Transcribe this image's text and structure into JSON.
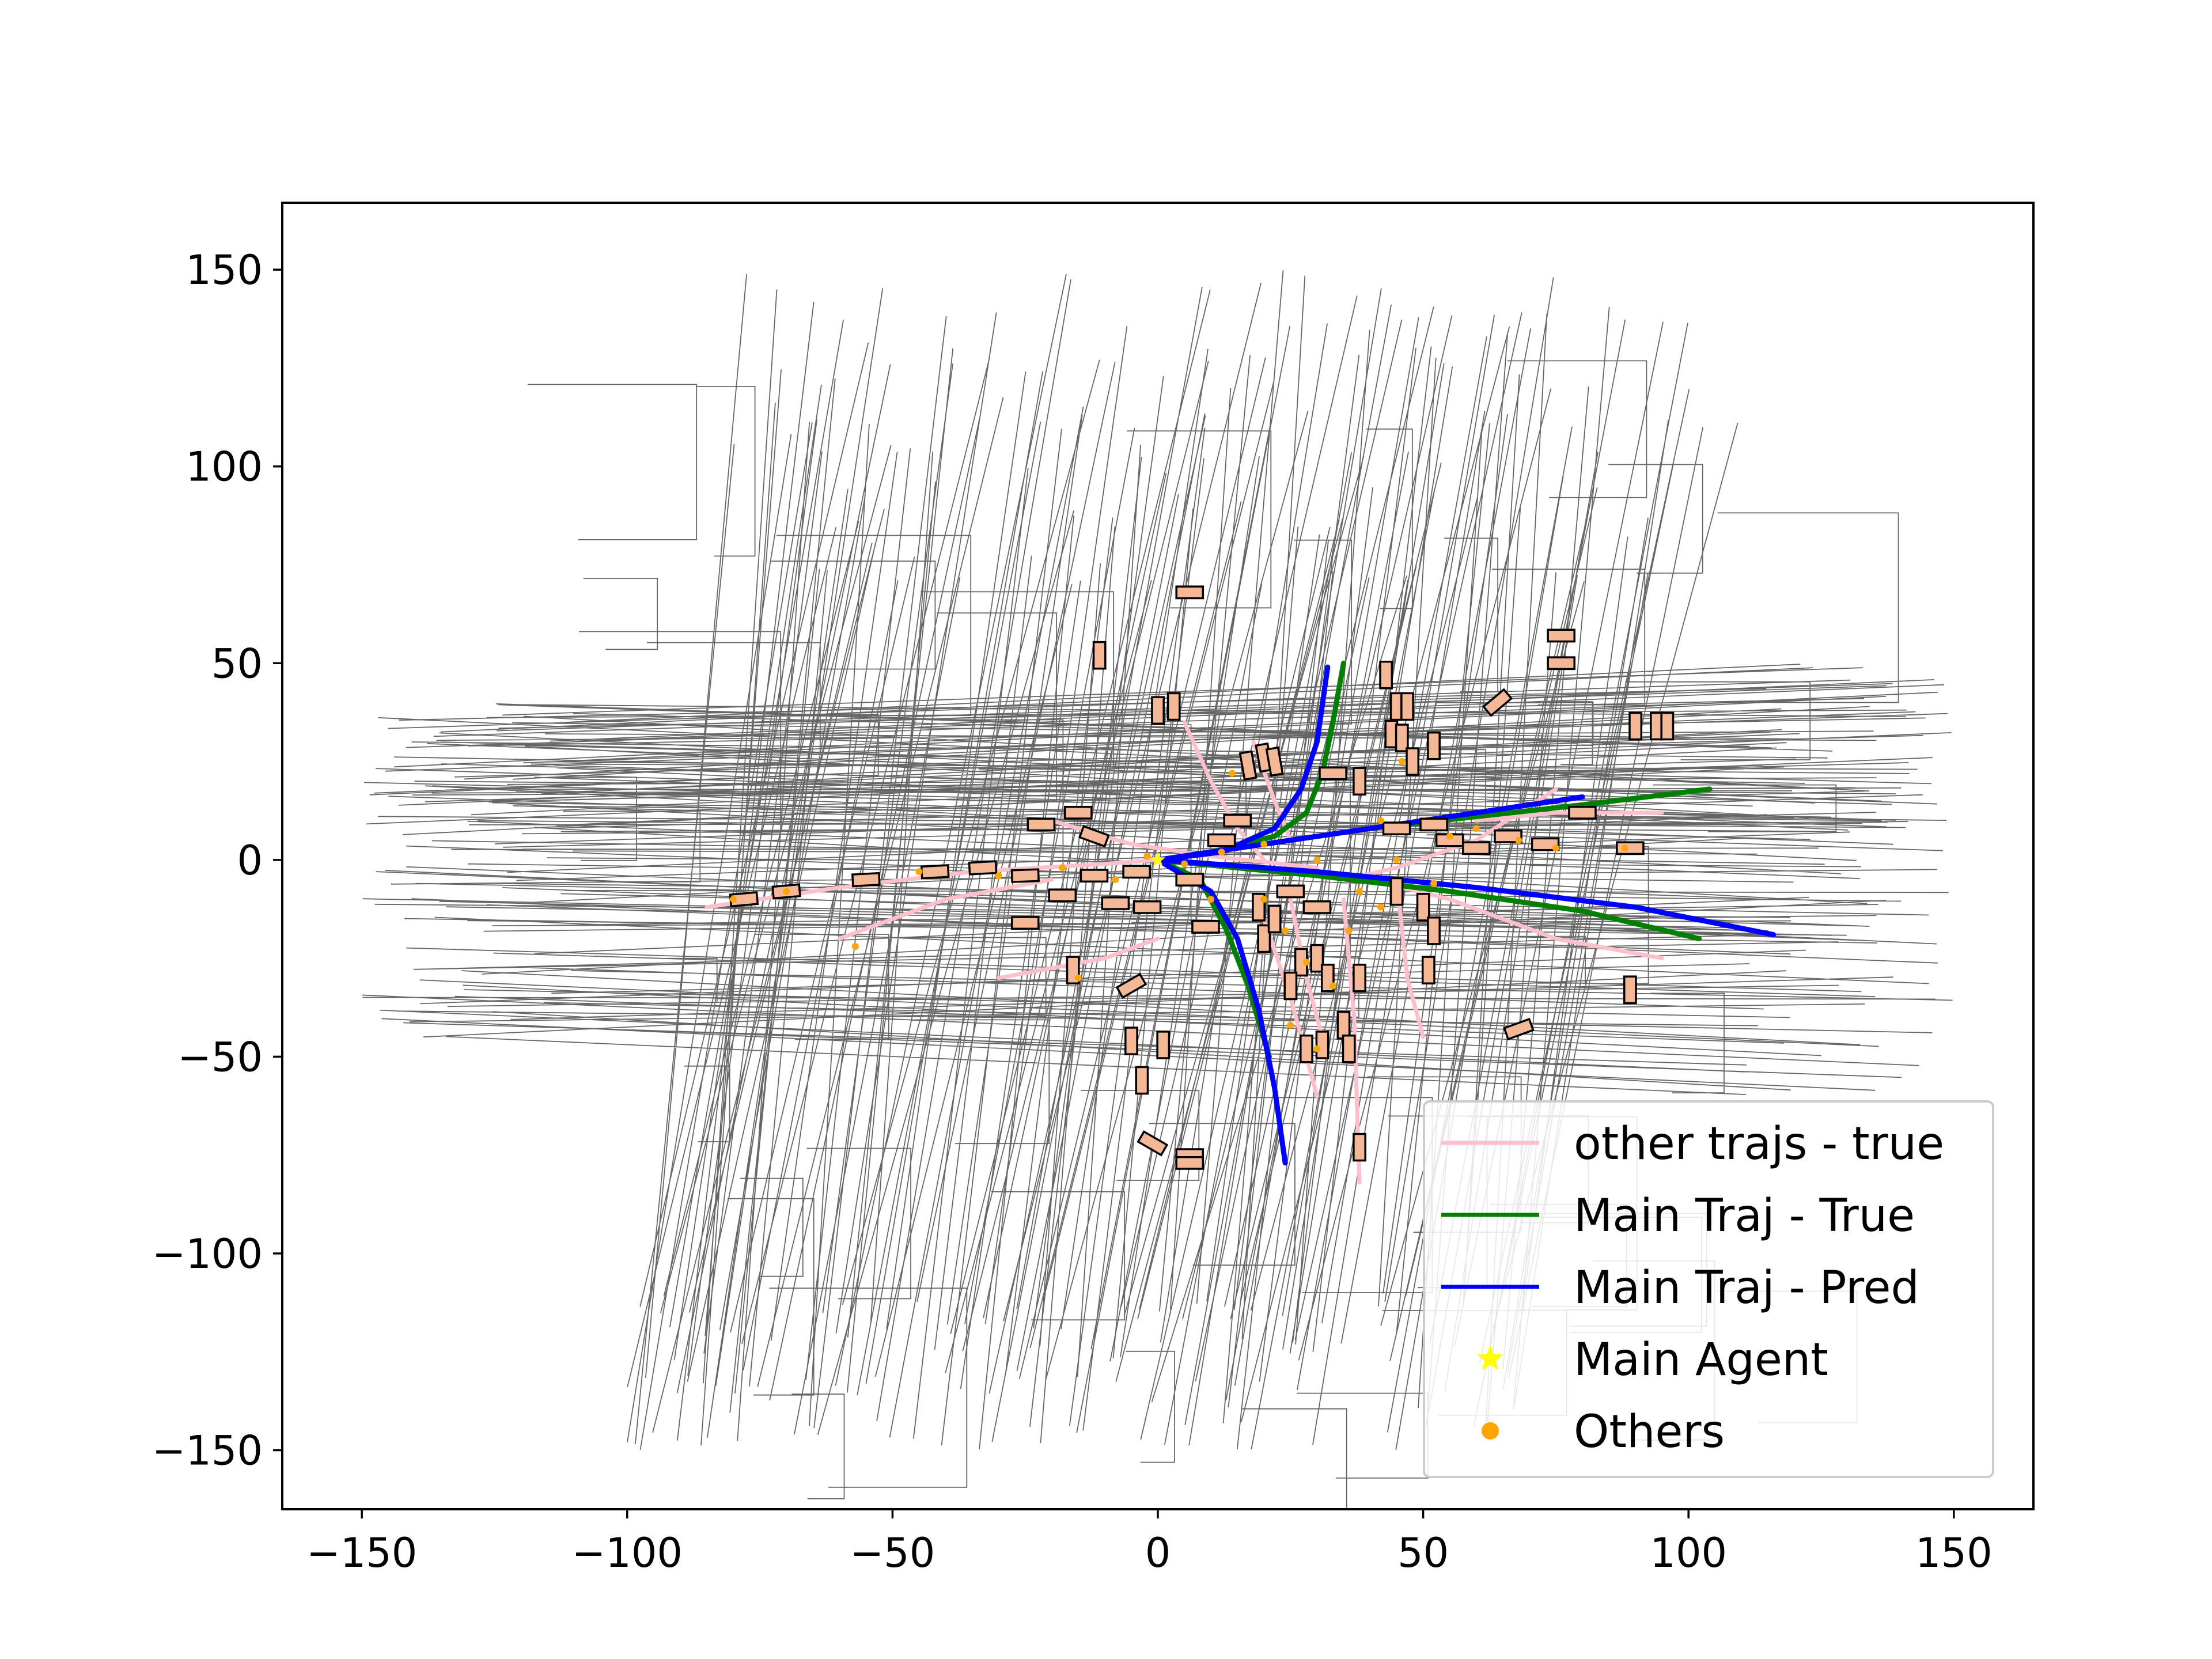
{
  "chart_data": {
    "type": "line",
    "title": "",
    "xlabel": "",
    "ylabel": "",
    "xlim": [
      -165,
      165
    ],
    "ylim": [
      -165,
      167
    ],
    "xticks": [
      -150,
      -100,
      -50,
      0,
      50,
      100,
      150
    ],
    "yticks": [
      -150,
      -100,
      -50,
      0,
      50,
      100,
      150
    ],
    "xtick_labels": [
      "−150",
      "−100",
      "−50",
      "0",
      "50",
      "100",
      "150"
    ],
    "ytick_labels": [
      "−150",
      "−100",
      "−50",
      "0",
      "50",
      "100",
      "150"
    ],
    "grid": false,
    "legend_position": "lower-right",
    "colors": {
      "map_lines": "#333333",
      "other_trajs_true": "#ffc0cb",
      "main_true": "#008000",
      "main_pred": "#0000ff",
      "main_agent": "#ffff00",
      "others": "#ffa500",
      "vehicle_box_fill": "#f4b896",
      "vehicle_box_edge": "#000000"
    },
    "legend": [
      {
        "label": "other trajs - true",
        "marker": "line",
        "color": "#ffc0cb"
      },
      {
        "label": "Main Traj - True",
        "marker": "line",
        "color": "#008000"
      },
      {
        "label": "Main Traj - Pred",
        "marker": "line",
        "color": "#0000ff"
      },
      {
        "label": "Main Agent",
        "marker": "star",
        "color": "#ffff00"
      },
      {
        "label": "Others",
        "marker": "dot",
        "color": "#ffa500"
      }
    ],
    "series": [
      {
        "name": "Main Traj - True",
        "color": "#008000",
        "paths": [
          [
            [
              0,
              0
            ],
            [
              10,
              2
            ],
            [
              22,
              6
            ],
            [
              28,
              12
            ],
            [
              31,
              22
            ],
            [
              33,
              35
            ],
            [
              35,
              50
            ]
          ],
          [
            [
              0,
              0
            ],
            [
              20,
              4
            ],
            [
              40,
              8
            ],
            [
              60,
              11
            ],
            [
              80,
              14
            ],
            [
              104,
              18
            ]
          ],
          [
            [
              0,
              0
            ],
            [
              30,
              -4
            ],
            [
              55,
              -8
            ],
            [
              80,
              -13
            ],
            [
              102,
              -20
            ]
          ],
          [
            [
              0,
              0
            ],
            [
              8,
              -5
            ],
            [
              13,
              -18
            ],
            [
              17,
              -32
            ],
            [
              21,
              -50
            ]
          ]
        ]
      },
      {
        "name": "Main Traj - Pred",
        "color": "#0000ff",
        "paths": [
          [
            [
              0,
              0
            ],
            [
              12,
              2
            ],
            [
              22,
              8
            ],
            [
              27,
              18
            ],
            [
              30,
              30
            ],
            [
              32,
              49
            ]
          ],
          [
            [
              0,
              0
            ],
            [
              20,
              4
            ],
            [
              40,
              8
            ],
            [
              60,
              12
            ],
            [
              80,
              16
            ]
          ],
          [
            [
              0,
              0
            ],
            [
              30,
              -3
            ],
            [
              60,
              -7
            ],
            [
              90,
              -12
            ],
            [
              116,
              -19
            ]
          ],
          [
            [
              0,
              0
            ],
            [
              10,
              -8
            ],
            [
              15,
              -20
            ],
            [
              19,
              -38
            ],
            [
              22,
              -58
            ],
            [
              24,
              -77
            ]
          ]
        ]
      },
      {
        "name": "other trajs - true",
        "color": "#ffc0cb",
        "paths": [
          [
            [
              -85,
              -12
            ],
            [
              -60,
              -7
            ],
            [
              -35,
              -3
            ],
            [
              -10,
              -1
            ],
            [
              0,
              0
            ]
          ],
          [
            [
              -20,
              10
            ],
            [
              -5,
              4
            ],
            [
              10,
              1
            ],
            [
              30,
              -2
            ]
          ],
          [
            [
              5,
              35
            ],
            [
              10,
              20
            ],
            [
              15,
              8
            ],
            [
              20,
              0
            ]
          ],
          [
            [
              18,
              30
            ],
            [
              22,
              15
            ],
            [
              25,
              5
            ]
          ],
          [
            [
              35,
              -5
            ],
            [
              45,
              -2
            ],
            [
              60,
              5
            ],
            [
              75,
              18
            ]
          ],
          [
            [
              40,
              -5
            ],
            [
              55,
              -10
            ],
            [
              75,
              -20
            ],
            [
              95,
              -25
            ]
          ],
          [
            [
              25,
              -10
            ],
            [
              28,
              -30
            ],
            [
              32,
              -50
            ]
          ],
          [
            [
              35,
              -10
            ],
            [
              37,
              -40
            ],
            [
              38,
              -82
            ]
          ],
          [
            [
              45,
              -5
            ],
            [
              47,
              -30
            ],
            [
              50,
              -45
            ]
          ],
          [
            [
              20,
              -15
            ],
            [
              25,
              -35
            ],
            [
              30,
              -60
            ]
          ],
          [
            [
              -60,
              -20
            ],
            [
              -40,
              -10
            ],
            [
              -20,
              -5
            ]
          ],
          [
            [
              60,
              10
            ],
            [
              75,
              12
            ],
            [
              95,
              12
            ]
          ],
          [
            [
              -30,
              -30
            ],
            [
              -10,
              -25
            ],
            [
              0,
              -20
            ]
          ]
        ]
      }
    ],
    "main_agent": {
      "x": 0,
      "y": 0
    },
    "others_points": [
      [
        -80,
        -10
      ],
      [
        -70,
        -8
      ],
      [
        -57,
        -22
      ],
      [
        -45,
        -3
      ],
      [
        -30,
        -4
      ],
      [
        -18,
        -2
      ],
      [
        -8,
        -5
      ],
      [
        -2,
        1
      ],
      [
        5,
        -1
      ],
      [
        12,
        2
      ],
      [
        14,
        22
      ],
      [
        20,
        -10
      ],
      [
        24,
        -18
      ],
      [
        28,
        -26
      ],
      [
        33,
        -32
      ],
      [
        36,
        -18
      ],
      [
        38,
        -8
      ],
      [
        42,
        -12
      ],
      [
        45,
        0
      ],
      [
        52,
        -6
      ],
      [
        55,
        6
      ],
      [
        60,
        8
      ],
      [
        68,
        5
      ],
      [
        75,
        3
      ],
      [
        88,
        3
      ],
      [
        20,
        4
      ],
      [
        30,
        0
      ],
      [
        42,
        10
      ],
      [
        46,
        25
      ],
      [
        25,
        -42
      ],
      [
        30,
        -48
      ],
      [
        -15,
        -30
      ],
      [
        10,
        -10
      ]
    ],
    "vehicles": [
      {
        "x": -78,
        "y": -10,
        "w": 5,
        "h": 2.2,
        "angle": 5
      },
      {
        "x": -70,
        "y": -8,
        "w": 5,
        "h": 2.2,
        "angle": 5
      },
      {
        "x": -55,
        "y": -5,
        "w": 5,
        "h": 2.2,
        "angle": 3
      },
      {
        "x": -42,
        "y": -3,
        "w": 5,
        "h": 2.2,
        "angle": 3
      },
      {
        "x": -33,
        "y": -2,
        "w": 5,
        "h": 2.2,
        "angle": 3
      },
      {
        "x": -25,
        "y": -4,
        "w": 5,
        "h": 2.2,
        "angle": 2
      },
      {
        "x": -18,
        "y": -9,
        "w": 5,
        "h": 2.2,
        "angle": 0
      },
      {
        "x": -12,
        "y": -4,
        "w": 5,
        "h": 2.2,
        "angle": 0
      },
      {
        "x": -8,
        "y": -11,
        "w": 5,
        "h": 2.2,
        "angle": 0
      },
      {
        "x": -4,
        "y": -3,
        "w": 5,
        "h": 2.2,
        "angle": 0
      },
      {
        "x": -2,
        "y": -12,
        "w": 5,
        "h": 2.2,
        "angle": 0
      },
      {
        "x": 6,
        "y": -5,
        "w": 5,
        "h": 2.2,
        "angle": 0
      },
      {
        "x": -12,
        "y": 6,
        "w": 5,
        "h": 2.2,
        "angle": -20
      },
      {
        "x": -22,
        "y": 9,
        "w": 5,
        "h": 2.2,
        "angle": 0
      },
      {
        "x": -15,
        "y": 12,
        "w": 5,
        "h": 2.2,
        "angle": 0
      },
      {
        "x": -11,
        "y": 52,
        "w": 2.2,
        "h": 5,
        "angle": 0
      },
      {
        "x": 6,
        "y": 68,
        "w": 5,
        "h": 2.2,
        "angle": 0
      },
      {
        "x": 0,
        "y": 38,
        "w": 2.2,
        "h": 5,
        "angle": 0
      },
      {
        "x": 3,
        "y": 39,
        "w": 2.2,
        "h": 5,
        "angle": 0
      },
      {
        "x": 20,
        "y": 26,
        "w": 2.2,
        "h": 5,
        "angle": 10
      },
      {
        "x": 22,
        "y": 25,
        "w": 2.2,
        "h": 5,
        "angle": 10
      },
      {
        "x": 17,
        "y": 24,
        "w": 2.2,
        "h": 5,
        "angle": 10
      },
      {
        "x": 38,
        "y": 20,
        "w": 2.2,
        "h": 5,
        "angle": 0
      },
      {
        "x": 33,
        "y": 22,
        "w": 5,
        "h": 2.2,
        "angle": 0
      },
      {
        "x": 43,
        "y": 47,
        "w": 2.2,
        "h": 5,
        "angle": 0
      },
      {
        "x": 45,
        "y": 39,
        "w": 2.2,
        "h": 5,
        "angle": 0
      },
      {
        "x": 47,
        "y": 39,
        "w": 2.2,
        "h": 5,
        "angle": 0
      },
      {
        "x": 44,
        "y": 32,
        "w": 2.2,
        "h": 5,
        "angle": 0
      },
      {
        "x": 46,
        "y": 31,
        "w": 2.2,
        "h": 5,
        "angle": 0
      },
      {
        "x": 52,
        "y": 29,
        "w": 2.2,
        "h": 5,
        "angle": 0
      },
      {
        "x": 48,
        "y": 25,
        "w": 2.2,
        "h": 5,
        "angle": 0
      },
      {
        "x": 64,
        "y": 40,
        "w": 5,
        "h": 2.2,
        "angle": 40
      },
      {
        "x": 76,
        "y": 57,
        "w": 5,
        "h": 2.2,
        "angle": 0
      },
      {
        "x": 76,
        "y": 50,
        "w": 5,
        "h": 2.2,
        "angle": 0
      },
      {
        "x": 90,
        "y": 34,
        "w": 2.2,
        "h": 5,
        "angle": 0
      },
      {
        "x": 94,
        "y": 34,
        "w": 2.2,
        "h": 5,
        "angle": 0
      },
      {
        "x": 96,
        "y": 34,
        "w": 2.2,
        "h": 5,
        "angle": 0
      },
      {
        "x": 80,
        "y": 12,
        "w": 5,
        "h": 2.2,
        "angle": 0
      },
      {
        "x": 55,
        "y": 5,
        "w": 5,
        "h": 2.2,
        "angle": 0
      },
      {
        "x": 60,
        "y": 3,
        "w": 5,
        "h": 2.2,
        "angle": 0
      },
      {
        "x": 66,
        "y": 6,
        "w": 5,
        "h": 2.2,
        "angle": 0
      },
      {
        "x": 73,
        "y": 4,
        "w": 5,
        "h": 2.2,
        "angle": 0
      },
      {
        "x": 89,
        "y": 3,
        "w": 5,
        "h": 2.2,
        "angle": 0
      },
      {
        "x": 45,
        "y": 8,
        "w": 5,
        "h": 2.2,
        "angle": 0
      },
      {
        "x": 52,
        "y": 9,
        "w": 5,
        "h": 2.2,
        "angle": 0
      },
      {
        "x": 50,
        "y": -12,
        "w": 2.2,
        "h": 5,
        "angle": 0
      },
      {
        "x": 52,
        "y": -18,
        "w": 2.2,
        "h": 5,
        "angle": 0
      },
      {
        "x": 51,
        "y": -28,
        "w": 2.2,
        "h": 5,
        "angle": 0
      },
      {
        "x": 45,
        "y": -8,
        "w": 2.2,
        "h": 5,
        "angle": 0
      },
      {
        "x": 30,
        "y": -25,
        "w": 2.2,
        "h": 5,
        "angle": 0
      },
      {
        "x": 27,
        "y": -26,
        "w": 2.2,
        "h": 5,
        "angle": 0
      },
      {
        "x": 25,
        "y": -32,
        "w": 2.2,
        "h": 5,
        "angle": 0
      },
      {
        "x": 32,
        "y": -30,
        "w": 2.2,
        "h": 5,
        "angle": 0
      },
      {
        "x": 38,
        "y": -30,
        "w": 2.2,
        "h": 5,
        "angle": 0
      },
      {
        "x": 35,
        "y": -42,
        "w": 2.2,
        "h": 5,
        "angle": 0
      },
      {
        "x": 28,
        "y": -48,
        "w": 2.2,
        "h": 5,
        "angle": 0
      },
      {
        "x": 31,
        "y": -47,
        "w": 2.2,
        "h": 5,
        "angle": 0
      },
      {
        "x": 36,
        "y": -48,
        "w": 2.2,
        "h": 5,
        "angle": 0
      },
      {
        "x": 20,
        "y": -20,
        "w": 2.2,
        "h": 5,
        "angle": 0
      },
      {
        "x": 22,
        "y": -15,
        "w": 2.2,
        "h": 5,
        "angle": 0
      },
      {
        "x": 19,
        "y": -12,
        "w": 2.2,
        "h": 5,
        "angle": 0
      },
      {
        "x": 9,
        "y": -17,
        "w": 5,
        "h": 2.2,
        "angle": 0
      },
      {
        "x": 25,
        "y": -8,
        "w": 5,
        "h": 2.2,
        "angle": 0
      },
      {
        "x": 30,
        "y": -12,
        "w": 5,
        "h": 2.2,
        "angle": 0
      },
      {
        "x": 38,
        "y": -73,
        "w": 2.2,
        "h": 5,
        "angle": 0
      },
      {
        "x": 89,
        "y": -33,
        "w": 2.2,
        "h": 5,
        "angle": 0
      },
      {
        "x": 68,
        "y": -43,
        "w": 5,
        "h": 2.2,
        "angle": 20
      },
      {
        "x": -16,
        "y": -28,
        "w": 2.2,
        "h": 5,
        "angle": 0
      },
      {
        "x": -5,
        "y": -46,
        "w": 2.2,
        "h": 5,
        "angle": 0
      },
      {
        "x": -3,
        "y": -56,
        "w": 2.2,
        "h": 5,
        "angle": 0
      },
      {
        "x": 1,
        "y": -47,
        "w": 2.2,
        "h": 5,
        "angle": 0
      },
      {
        "x": -1,
        "y": -72,
        "w": 5,
        "h": 2.2,
        "angle": -30
      },
      {
        "x": 6,
        "y": -75,
        "w": 5,
        "h": 2.2,
        "angle": 0
      },
      {
        "x": 6,
        "y": -77,
        "w": 5,
        "h": 2.2,
        "angle": 0
      },
      {
        "x": -5,
        "y": -32,
        "w": 5,
        "h": 2.2,
        "angle": 30
      },
      {
        "x": -25,
        "y": -16,
        "w": 5,
        "h": 2.2,
        "angle": 0
      },
      {
        "x": 15,
        "y": 10,
        "w": 5,
        "h": 2.2,
        "angle": 0
      },
      {
        "x": 12,
        "y": 5,
        "w": 5,
        "h": 2.2,
        "angle": 0
      }
    ]
  }
}
